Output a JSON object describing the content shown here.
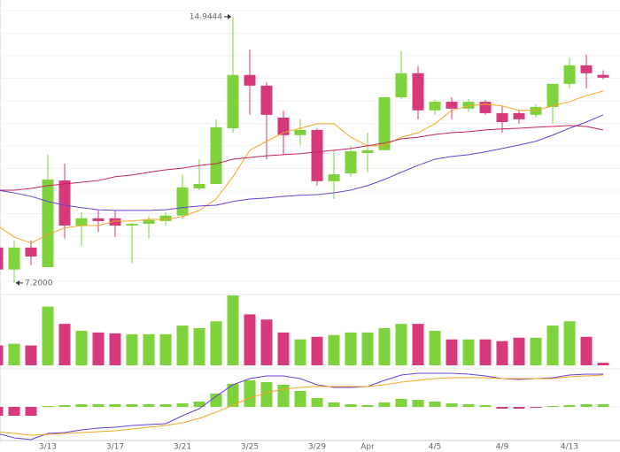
{
  "chart_data": {
    "type": "candlestick",
    "categories": [
      null,
      null,
      null,
      "3/13",
      null,
      null,
      null,
      "3/17",
      null,
      null,
      null,
      "3/21",
      null,
      null,
      null,
      "3/25",
      null,
      null,
      null,
      "3/29",
      null,
      null,
      "Apr",
      null,
      null,
      null,
      "4/5",
      null,
      null,
      null,
      "4/9",
      null,
      null,
      null,
      "4/13",
      null,
      null
    ],
    "open": [
      8.23,
      7.59,
      8.23,
      7.66,
      10.18,
      8.87,
      9.08,
      9.08,
      8.87,
      8.92,
      9.0,
      9.16,
      9.95,
      10.08,
      11.7,
      13.25,
      12.94,
      12.01,
      11.5,
      11.65,
      10.16,
      10.39,
      10.98,
      11.06,
      12.6,
      13.3,
      12.22,
      12.47,
      12.27,
      12.47,
      12.14,
      12.14,
      12.09,
      12.32,
      12.99,
      13.53,
      13.25
    ],
    "high": [
      8.3,
      8.44,
      8.44,
      10.93,
      10.67,
      9.26,
      9.31,
      9.31,
      8.95,
      9.13,
      9.26,
      10.36,
      10.8,
      11.96,
      14.9444,
      13.99,
      13.04,
      12.22,
      11.96,
      11.7,
      11.06,
      11.19,
      11.57,
      12.6,
      13.94,
      13.5,
      12.53,
      12.6,
      12.55,
      12.53,
      12.35,
      12.22,
      12.4,
      12.99,
      13.76,
      13.84,
      13.38
    ],
    "low": [
      7.5,
      7.2,
      7.72,
      7.66,
      8.49,
      8.28,
      8.69,
      8.54,
      7.77,
      8.49,
      8.87,
      9.08,
      9.9,
      10.08,
      11.57,
      12.09,
      10.8,
      10.93,
      11.19,
      10.03,
      9.64,
      10.29,
      10.41,
      11.06,
      12.55,
      11.96,
      12.09,
      11.96,
      12.17,
      12.09,
      11.57,
      11.83,
      12.01,
      11.83,
      12.86,
      12.86,
      13.12
    ],
    "close": [
      7.59,
      8.23,
      7.97,
      10.21,
      8.87,
      9.08,
      9.0,
      8.87,
      8.92,
      9.03,
      9.16,
      9.98,
      10.08,
      11.73,
      13.25,
      12.94,
      12.09,
      11.5,
      11.65,
      10.16,
      10.36,
      11.03,
      11.06,
      12.6,
      13.3,
      12.22,
      12.47,
      12.27,
      12.47,
      12.14,
      11.88,
      11.96,
      12.32,
      12.99,
      13.53,
      13.3,
      13.17
    ],
    "up_color": "#7ed23c",
    "down_color": "#d6397c",
    "ylim": [
      6.94,
      15.43
    ],
    "grid": true,
    "ma": [
      {
        "color": "#f5a623",
        "values": [
          8.87,
          8.54,
          8.36,
          8.61,
          8.8,
          8.87,
          8.87,
          9.0,
          9.0,
          9.05,
          9.05,
          9.13,
          9.31,
          9.64,
          10.29,
          11.06,
          11.32,
          11.57,
          11.7,
          11.83,
          11.83,
          11.44,
          11.19,
          11.19,
          11.44,
          11.57,
          11.83,
          12.22,
          12.35,
          12.4,
          12.35,
          12.22,
          12.22,
          12.35,
          12.47,
          12.65,
          12.78
        ]
      },
      {
        "color": "#c8245a",
        "values": [
          9.9,
          9.9,
          9.95,
          10.03,
          10.08,
          10.13,
          10.18,
          10.29,
          10.34,
          10.42,
          10.49,
          10.54,
          10.62,
          10.67,
          10.8,
          10.85,
          10.9,
          10.93,
          10.96,
          11.01,
          11.06,
          11.11,
          11.19,
          11.27,
          11.39,
          11.44,
          11.52,
          11.57,
          11.6,
          11.65,
          11.68,
          11.7,
          11.73,
          11.75,
          11.78,
          11.75,
          11.65
        ]
      },
      {
        "color": "#6a3fd0",
        "values": [
          9.9,
          9.82,
          9.72,
          9.57,
          9.46,
          9.39,
          9.33,
          9.31,
          9.31,
          9.31,
          9.33,
          9.39,
          9.44,
          9.46,
          9.57,
          9.64,
          9.67,
          9.72,
          9.75,
          9.77,
          9.82,
          9.9,
          10.03,
          10.21,
          10.42,
          10.62,
          10.8,
          10.88,
          10.93,
          11.01,
          11.11,
          11.21,
          11.32,
          11.5,
          11.7,
          11.88,
          12.09
        ]
      }
    ],
    "annotations": [
      {
        "value": 14.9444,
        "label": "14.9444"
      },
      {
        "value": 7.2,
        "label": "7.2000"
      }
    ],
    "volume": {
      "ylim": [
        0,
        85
      ],
      "values": [
        23,
        25,
        23,
        68,
        48,
        40,
        38,
        37,
        36,
        36,
        36,
        46,
        43,
        51,
        81,
        59,
        53,
        38,
        30,
        33,
        35,
        38,
        38,
        43,
        48,
        48,
        40,
        30,
        30,
        30,
        28,
        32,
        32,
        46,
        51,
        33,
        3
      ]
    },
    "macd": {
      "ylim": [
        -0.4,
        0.42
      ],
      "histogram": [
        -0.1,
        -0.1,
        -0.1,
        0.01,
        0.02,
        0.03,
        0.03,
        0.03,
        0.03,
        0.03,
        0.03,
        0.04,
        0.06,
        0.15,
        0.26,
        0.3,
        0.28,
        0.25,
        0.18,
        0.1,
        0.05,
        0.03,
        0.02,
        0.05,
        0.09,
        0.08,
        0.06,
        0.04,
        0.03,
        0.02,
        -0.02,
        -0.02,
        -0.01,
        0.01,
        0.02,
        0.03,
        0.03
      ],
      "lines": [
        {
          "color": "#6a3fd0",
          "values": [
            -0.3,
            -0.35,
            -0.37,
            -0.3,
            -0.29,
            -0.26,
            -0.24,
            -0.23,
            -0.21,
            -0.2,
            -0.19,
            -0.1,
            -0.02,
            0.12,
            0.25,
            0.32,
            0.35,
            0.35,
            0.32,
            0.25,
            0.22,
            0.22,
            0.23,
            0.3,
            0.36,
            0.38,
            0.38,
            0.38,
            0.37,
            0.35,
            0.32,
            0.31,
            0.32,
            0.33,
            0.36,
            0.37,
            0.37
          ]
        },
        {
          "color": "#f5a623",
          "values": [
            -0.28,
            -0.3,
            -0.32,
            -0.31,
            -0.3,
            -0.29,
            -0.28,
            -0.27,
            -0.25,
            -0.23,
            -0.21,
            -0.18,
            -0.13,
            -0.06,
            0.02,
            0.1,
            0.16,
            0.2,
            0.22,
            0.23,
            0.23,
            0.23,
            0.23,
            0.25,
            0.28,
            0.3,
            0.32,
            0.33,
            0.33,
            0.33,
            0.32,
            0.32,
            0.32,
            0.32,
            0.34,
            0.35,
            0.36
          ]
        }
      ]
    }
  }
}
